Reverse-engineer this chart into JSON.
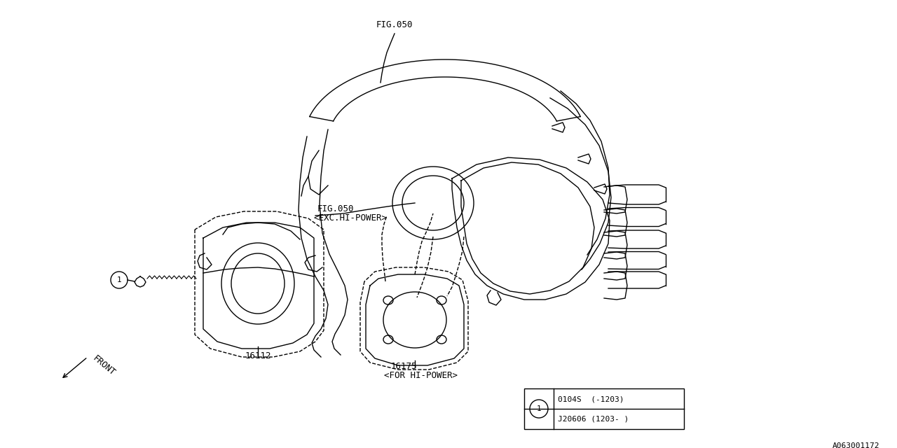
{
  "bg_color": "#ffffff",
  "line_color": "#000000",
  "fig_label": "FIG.050",
  "fig050_exc": "FIG.050",
  "fig050_exc2": "<EXC.HI-POWER>",
  "part_16112": "16112",
  "part_16175": "16175",
  "part_16175b": "<FOR HI-POWER>",
  "front_label": "FRONT",
  "legend_row1": "0104S  (-1203)",
  "legend_row2": "J20606 (1203- )",
  "watermark": "A063001172",
  "lw": 1.0,
  "font_size": 9,
  "mono_font": "monospace"
}
